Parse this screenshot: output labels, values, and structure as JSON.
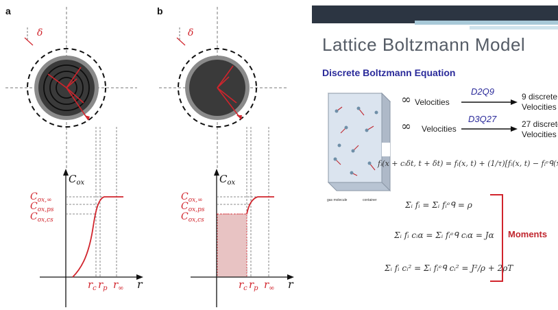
{
  "panels": {
    "a": {
      "tag": "a"
    },
    "b": {
      "tag": "b"
    }
  },
  "figure": {
    "delta": "δ",
    "c_ox": "C",
    "c_ox_sub": "ox",
    "c_ox_inf": "C",
    "c_ox_inf_sub": "ox,∞",
    "c_ox_ps": "C",
    "c_ox_ps_sub": "ox,ps",
    "c_ox_cs": "C",
    "c_ox_cs_sub": "ox,cs",
    "r_axis": "r",
    "r_c": "r",
    "r_c_sub": "c",
    "r_p": "r",
    "r_p_sub": "p",
    "r_inf": "r",
    "r_inf_sub": "∞"
  },
  "slide": {
    "title": "Lattice Boltzmann Model",
    "subtitle": "Discrete Boltzmann Equation",
    "row1_symbol": "∞",
    "row1_label": "Velocities",
    "row1_model": "D2Q9",
    "row1_result_line1": "9 discrete",
    "row1_result_line2": "Velocities",
    "row2_symbol": "∞",
    "row2_label": "Velocities",
    "row2_model": "D3Q27",
    "row2_result_line1": "27 discrete",
    "row2_result_line2": "Velocities",
    "equation": "fᵢ(x + cᵢδt, t + δt) = fᵢ(x, t) + (1/τ)[fᵢ(x, t) − fᵢᵉᑫ(x, t)",
    "moment1": "Σᵢ fᵢ = Σᵢ fᵢᵉᑫ = ρ",
    "moment2": "Σᵢ fᵢ cᵢα = Σᵢ fᵢᵉᑫ cᵢα = Jα",
    "moment3": "Σᵢ fᵢ cᵢ² = Σᵢ fᵢᵉᑫ cᵢ² = J²/ρ + 2ρT",
    "moments_label": "Moments",
    "cube_label_left": "gas molecule",
    "cube_label_right": "container"
  },
  "colors": {
    "red": "#d1242c",
    "disk_dark": "#3a3a3a",
    "disk_light": "#8a8a8a",
    "slide_bar": "#2c3542",
    "accent_blue": "#2a2a9a"
  }
}
